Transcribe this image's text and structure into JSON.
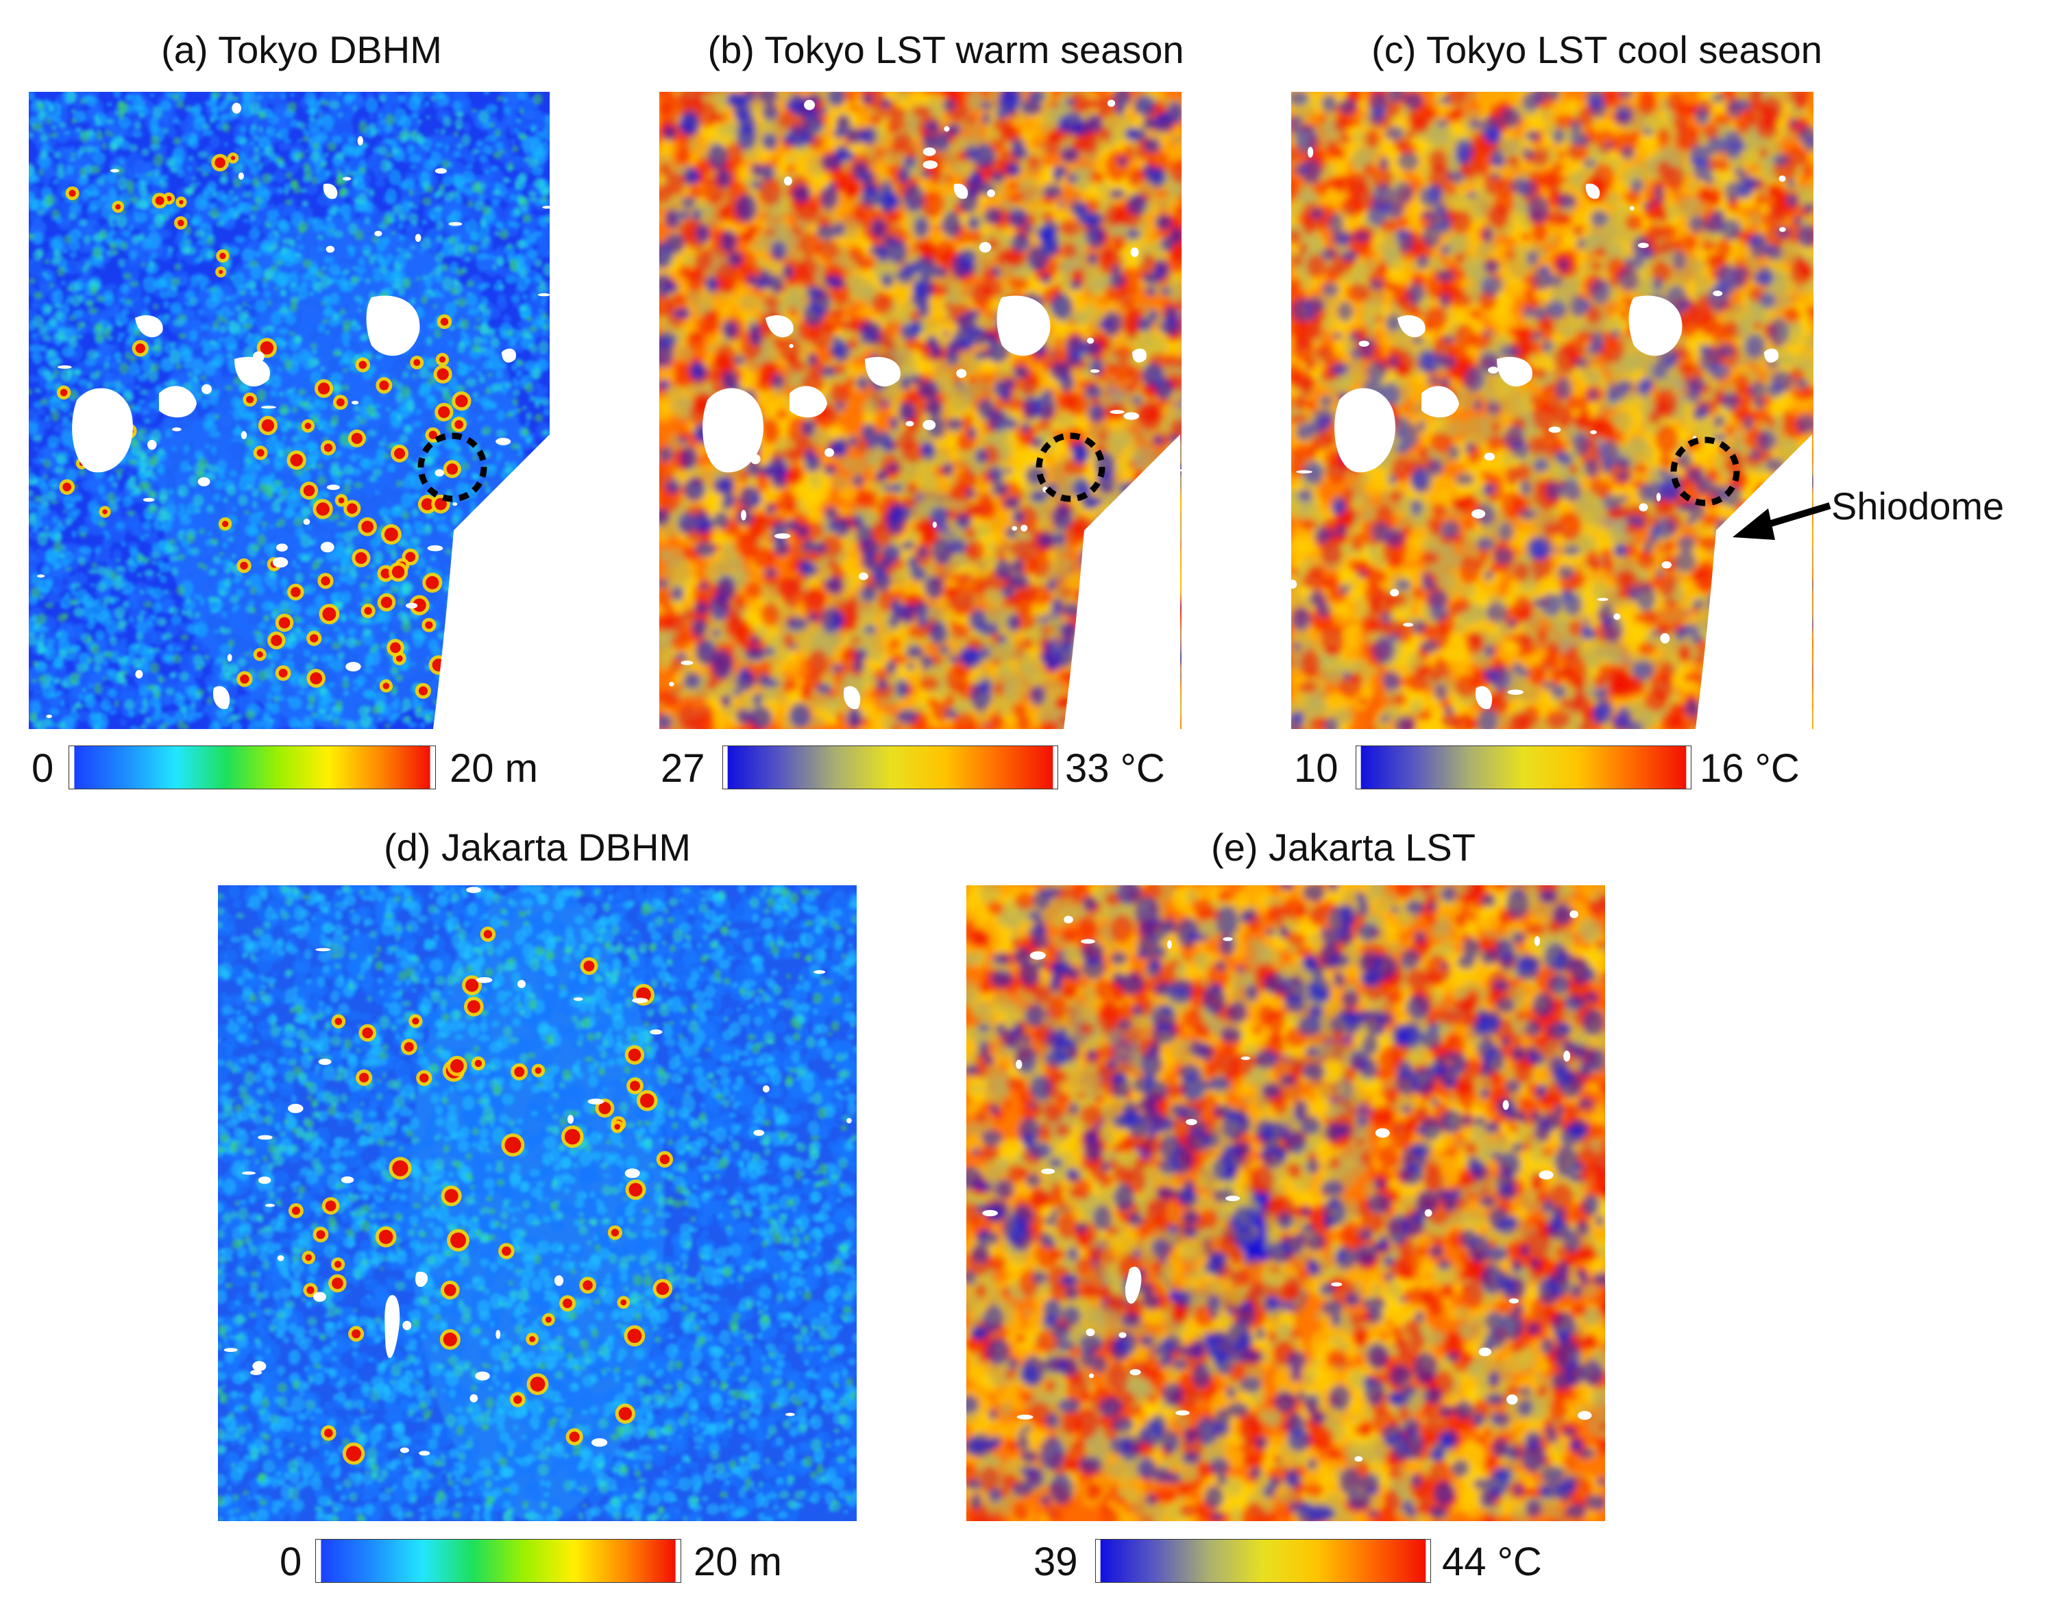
{
  "figure": {
    "panels": [
      {
        "id": "a",
        "title": "(a) Tokyo DBHM",
        "variable": "DBHM",
        "city": "Tokyo",
        "scale": {
          "min_label": "0",
          "max_label": "20 m",
          "min": 0,
          "max": 20,
          "unit": "m",
          "palette": "jet"
        }
      },
      {
        "id": "b",
        "title": "(b) Tokyo LST warm season",
        "variable": "LST",
        "city": "Tokyo",
        "scale": {
          "min_label": "27",
          "max_label": "33 °C",
          "min": 27,
          "max": 33,
          "unit": "°C",
          "palette": "blue-yellow-red"
        }
      },
      {
        "id": "c",
        "title": "(c) Tokyo LST cool season",
        "variable": "LST",
        "city": "Tokyo",
        "scale": {
          "min_label": "10",
          "max_label": "16 °C",
          "min": 10,
          "max": 16,
          "unit": "°C",
          "palette": "blue-yellow-red"
        }
      },
      {
        "id": "d",
        "title": "(d) Jakarta DBHM",
        "variable": "DBHM",
        "city": "Jakarta",
        "scale": {
          "min_label": "0",
          "max_label": "20 m",
          "min": 0,
          "max": 20,
          "unit": "m",
          "palette": "jet"
        }
      },
      {
        "id": "e",
        "title": "(e) Jakarta LST",
        "variable": "LST",
        "city": "Jakarta",
        "scale": {
          "min_label": "39",
          "max_label": "44 °C",
          "min": 39,
          "max": 44,
          "unit": "°C",
          "palette": "blue-yellow-red"
        }
      }
    ],
    "annotation": {
      "label": "Shiodome"
    }
  },
  "palettes": {
    "jet": [
      "#1a40ff",
      "#1d8cff",
      "#22e6ff",
      "#1ee05a",
      "#9bf000",
      "#fff000",
      "#ff8a00",
      "#f21000"
    ],
    "blue_yellow_red": [
      "#1010e0",
      "#5a5ac0",
      "#aab070",
      "#e8e020",
      "#ffc400",
      "#ff6a00",
      "#f21000"
    ]
  }
}
